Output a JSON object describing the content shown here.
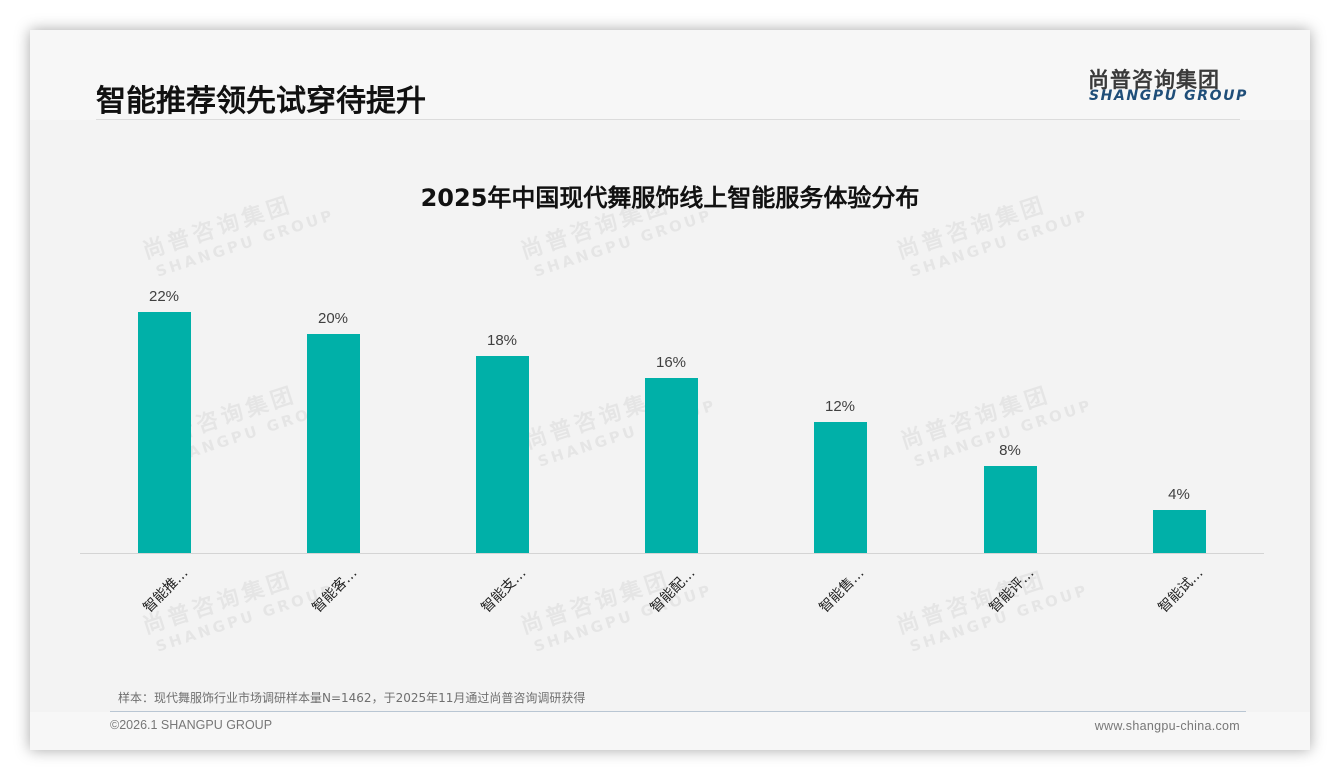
{
  "header": {
    "title": "智能推荐领先试穿待提升",
    "logo_cn": "尚普咨询集团",
    "logo_en": "SHANGPU GROUP"
  },
  "watermark": {
    "cn": "尚普咨询集团",
    "en": "SHANGPU GROUP"
  },
  "chart_data": {
    "type": "bar",
    "title": "2025年中国现代舞服饰线上智能服务体验分布",
    "categories": [
      "智能推…",
      "智能客…",
      "智能支…",
      "智能配…",
      "智能售…",
      "智能评…",
      "智能试…"
    ],
    "values": [
      22,
      20,
      18,
      16,
      12,
      8,
      4
    ],
    "value_labels": [
      "22%",
      "20%",
      "18%",
      "16%",
      "12%",
      "8%",
      "4%"
    ],
    "unit": "%",
    "xlabel": "",
    "ylabel": "",
    "ylim": [
      0,
      25
    ],
    "grid": false,
    "legend": null,
    "bar_color": "#00b0a8"
  },
  "footer": {
    "note": "样本：现代舞服饰行业市场调研样本量N=1462，于2025年11月通过尚普咨询调研获得",
    "copyright": "©2026.1 SHANGPU GROUP",
    "website": "www.shangpu-china.com"
  }
}
